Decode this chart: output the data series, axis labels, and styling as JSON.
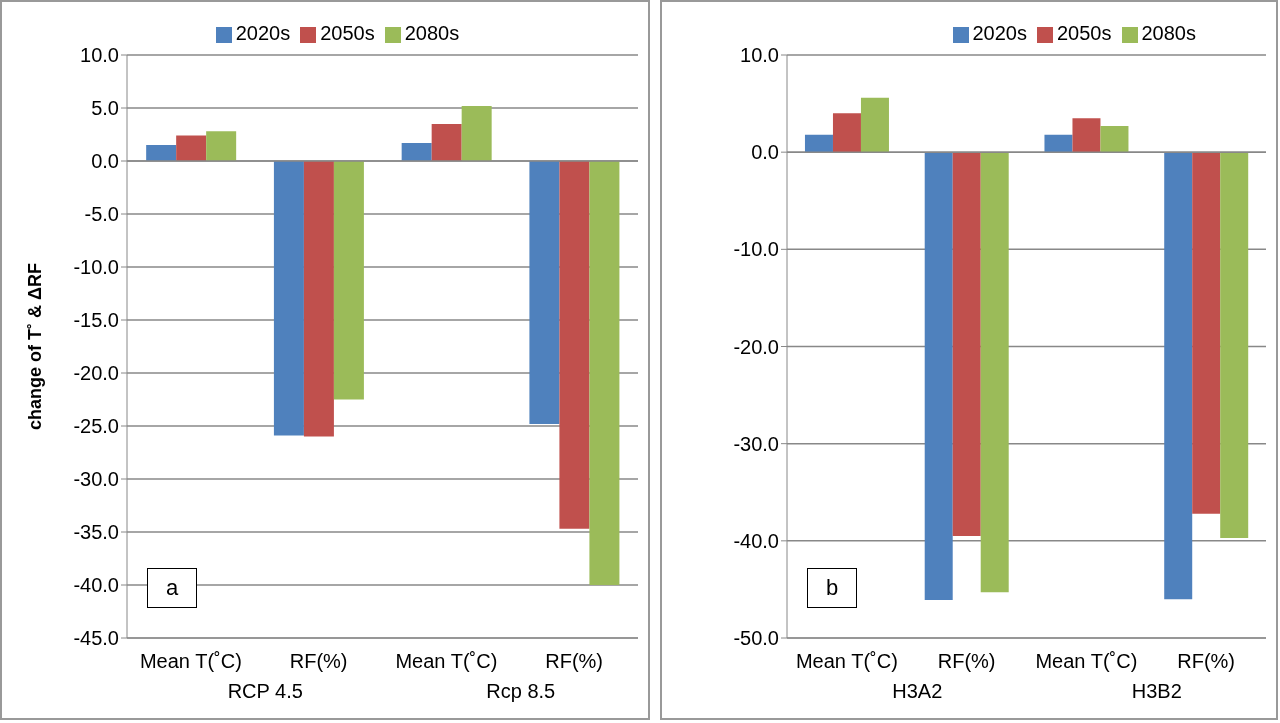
{
  "chart_data": [
    {
      "type": "bar",
      "title": "a",
      "ylabel": "change of T˚ & ΔRF",
      "categories": [
        "Mean T(˚C)",
        "RF(%)",
        "Mean T(˚C)",
        "RF(%)"
      ],
      "annotations": [
        "RCP 4.5",
        "Rcp 8.5"
      ],
      "series": [
        {
          "name": "2020s",
          "color": "#4f81bd",
          "values": [
            1.5,
            -25.9,
            1.7,
            -24.8
          ]
        },
        {
          "name": "2050s",
          "color": "#c0504d",
          "values": [
            2.4,
            -26.0,
            3.5,
            -34.7
          ]
        },
        {
          "name": "2080s",
          "color": "#9bbb59",
          "values": [
            2.8,
            -22.5,
            5.2,
            -40.0
          ]
        }
      ],
      "ylim": [
        -45,
        10
      ],
      "yticks": [
        {
          "value": -45,
          "label": "-45.0"
        },
        {
          "value": -40,
          "label": "-40.0"
        },
        {
          "value": -35,
          "label": "-35.0"
        },
        {
          "value": -30,
          "label": "-30.0"
        },
        {
          "value": -25,
          "label": "-25.0"
        },
        {
          "value": -20,
          "label": "-20.0"
        },
        {
          "value": -15,
          "label": "-15.0"
        },
        {
          "value": -10,
          "label": "-10.0"
        },
        {
          "value": -5,
          "label": "-5.0"
        },
        {
          "value": 0,
          "label": "0.0"
        },
        {
          "value": 5,
          "label": "5.0"
        },
        {
          "value": 10,
          "label": "10.0"
        }
      ],
      "grid": "y",
      "legend": "top"
    },
    {
      "type": "bar",
      "title": "b",
      "categories": [
        "Mean T(˚C)",
        "RF(%)",
        "Mean T(˚C)",
        "RF(%)"
      ],
      "annotations": [
        "H3A2",
        "H3B2"
      ],
      "series": [
        {
          "name": "2020s",
          "color": "#4f81bd",
          "values": [
            1.8,
            -46.1,
            1.8,
            -46.0
          ]
        },
        {
          "name": "2050s",
          "color": "#c0504d",
          "values": [
            4.0,
            -39.5,
            3.5,
            -37.2
          ]
        },
        {
          "name": "2080s",
          "color": "#9bbb59",
          "values": [
            5.6,
            -45.3,
            2.7,
            -39.7
          ]
        }
      ],
      "ylim": [
        -50,
        10
      ],
      "yticks": [
        {
          "value": -50,
          "label": "-50.0"
        },
        {
          "value": -40,
          "label": "-40.0"
        },
        {
          "value": -30,
          "label": "-30.0"
        },
        {
          "value": -20,
          "label": "-20.0"
        },
        {
          "value": -10,
          "label": "-10.0"
        },
        {
          "value": 0,
          "label": "0.0"
        },
        {
          "value": 10,
          "label": "10.0"
        }
      ],
      "grid": "y",
      "legend": "top right"
    }
  ]
}
